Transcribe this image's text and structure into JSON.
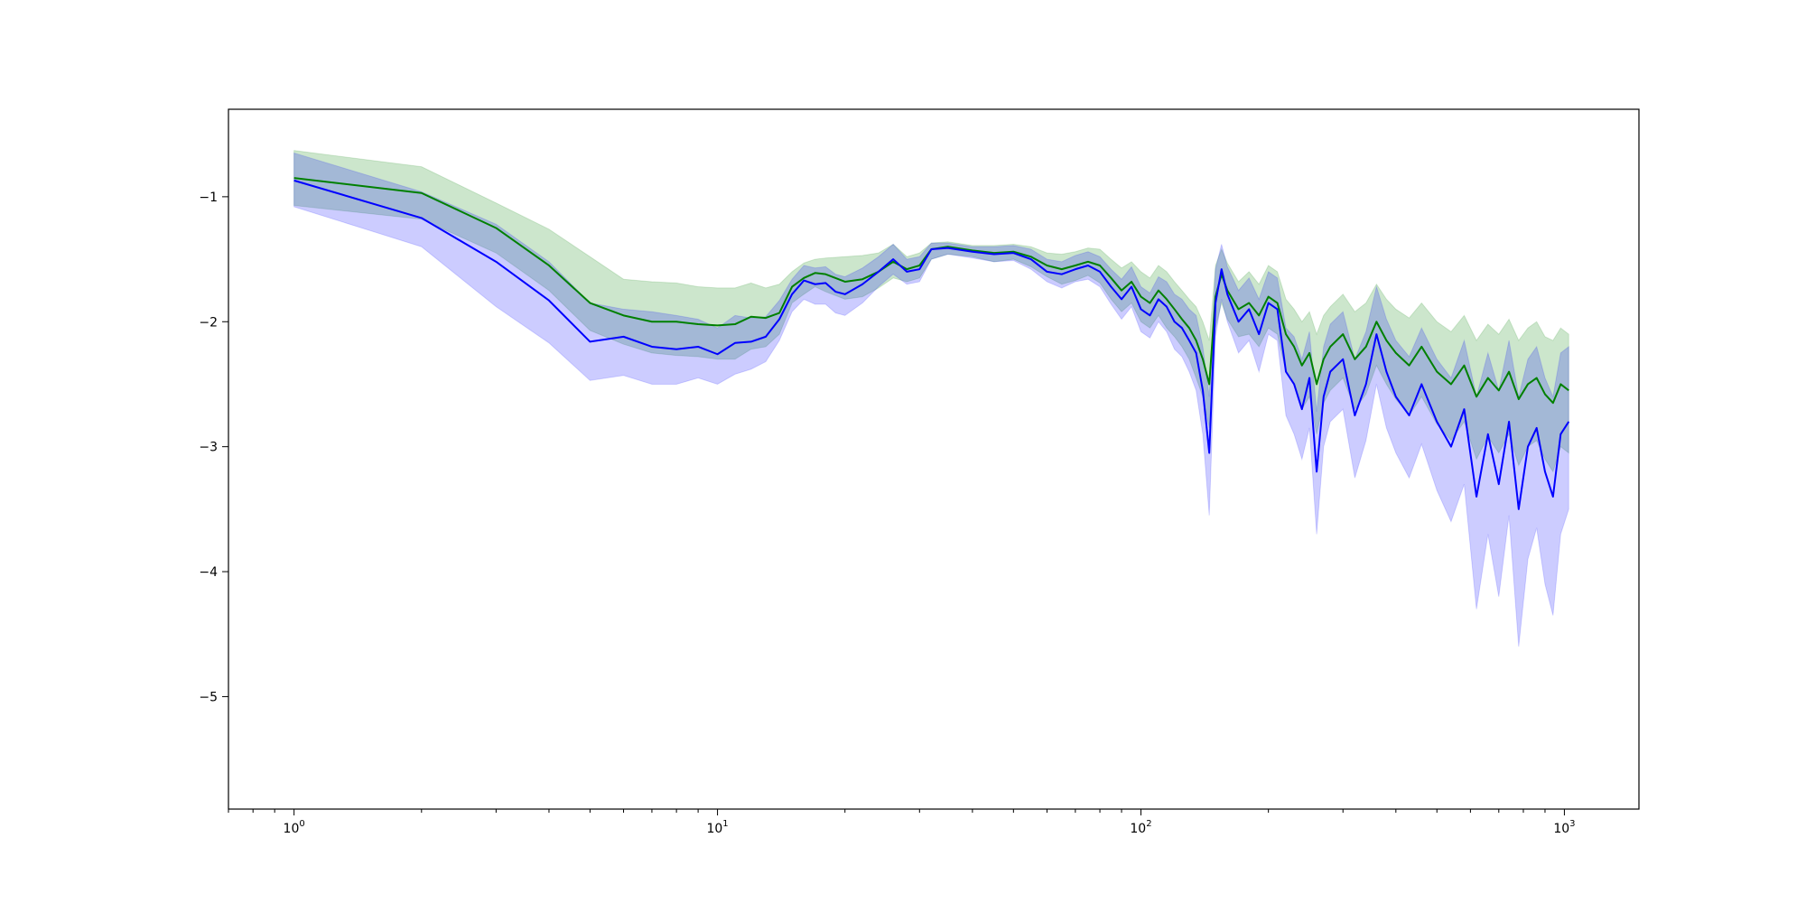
{
  "chart_data": {
    "type": "line",
    "title": "",
    "xlabel": "",
    "ylabel": "",
    "x_scale": "log",
    "xlim": [
      0.7,
      1500
    ],
    "ylim": [
      -5.9,
      -0.3
    ],
    "grid": false,
    "legend": "none",
    "x_ticks": [
      {
        "value": 1,
        "base": "10",
        "exp": "0"
      },
      {
        "value": 10,
        "base": "10",
        "exp": "1"
      },
      {
        "value": 100,
        "base": "10",
        "exp": "2"
      },
      {
        "value": 1000,
        "base": "10",
        "exp": "3"
      }
    ],
    "y_ticks": [
      {
        "value": -1,
        "label": "−1"
      },
      {
        "value": -2,
        "label": "−2"
      },
      {
        "value": -3,
        "label": "−3"
      },
      {
        "value": -4,
        "label": "−4"
      },
      {
        "value": -5,
        "label": "−5"
      }
    ],
    "series": [
      {
        "color": "#008000",
        "band_color": "#008000",
        "band_opacity": 0.2,
        "points": [
          [
            1,
            -0.85,
            -1.07,
            -0.63
          ],
          [
            2,
            -0.97,
            -1.18,
            -0.76
          ],
          [
            3,
            -1.25,
            -1.45,
            -1.05
          ],
          [
            4,
            -1.55,
            -1.75,
            -1.26
          ],
          [
            5,
            -1.85,
            -2.07,
            -1.48
          ],
          [
            6,
            -1.95,
            -2.18,
            -1.66
          ],
          [
            7,
            -2.0,
            -2.25,
            -1.68
          ],
          [
            8,
            -2.0,
            -2.27,
            -1.69
          ],
          [
            9,
            -2.02,
            -2.28,
            -1.72
          ],
          [
            10,
            -2.03,
            -2.3,
            -1.73
          ],
          [
            11,
            -2.02,
            -2.3,
            -1.73
          ],
          [
            12,
            -1.96,
            -2.22,
            -1.69
          ],
          [
            13,
            -1.97,
            -2.2,
            -1.73
          ],
          [
            14,
            -1.93,
            -2.1,
            -1.7
          ],
          [
            15,
            -1.72,
            -1.85,
            -1.6
          ],
          [
            16,
            -1.65,
            -1.78,
            -1.53
          ],
          [
            17,
            -1.61,
            -1.72,
            -1.5
          ],
          [
            18,
            -1.62,
            -1.76,
            -1.49
          ],
          [
            20,
            -1.68,
            -1.82,
            -1.48
          ],
          [
            22,
            -1.66,
            -1.8,
            -1.47
          ],
          [
            24,
            -1.6,
            -1.73,
            -1.45
          ],
          [
            26,
            -1.52,
            -1.65,
            -1.38
          ],
          [
            28,
            -1.58,
            -1.68,
            -1.48
          ],
          [
            30,
            -1.55,
            -1.65,
            -1.45
          ],
          [
            32,
            -1.42,
            -1.5,
            -1.37
          ],
          [
            35,
            -1.4,
            -1.46,
            -1.36
          ],
          [
            40,
            -1.43,
            -1.48,
            -1.39
          ],
          [
            45,
            -1.45,
            -1.52,
            -1.39
          ],
          [
            50,
            -1.44,
            -1.5,
            -1.38
          ],
          [
            55,
            -1.48,
            -1.56,
            -1.4
          ],
          [
            60,
            -1.55,
            -1.64,
            -1.45
          ],
          [
            65,
            -1.58,
            -1.7,
            -1.46
          ],
          [
            70,
            -1.55,
            -1.67,
            -1.44
          ],
          [
            75,
            -1.52,
            -1.63,
            -1.41
          ],
          [
            80,
            -1.55,
            -1.69,
            -1.42
          ],
          [
            85,
            -1.65,
            -1.82,
            -1.5
          ],
          [
            90,
            -1.75,
            -1.92,
            -1.57
          ],
          [
            95,
            -1.68,
            -1.85,
            -1.52
          ],
          [
            100,
            -1.8,
            -2.0,
            -1.6
          ],
          [
            105,
            -1.85,
            -2.05,
            -1.65
          ],
          [
            110,
            -1.75,
            -1.95,
            -1.55
          ],
          [
            115,
            -1.82,
            -2.05,
            -1.6
          ],
          [
            120,
            -1.9,
            -2.12,
            -1.68
          ],
          [
            125,
            -1.98,
            -2.2,
            -1.75
          ],
          [
            130,
            -2.05,
            -2.3,
            -1.82
          ],
          [
            135,
            -2.15,
            -2.45,
            -1.88
          ],
          [
            140,
            -2.3,
            -2.6,
            -2.0
          ],
          [
            145,
            -2.5,
            -2.85,
            -2.15
          ],
          [
            150,
            -1.8,
            -2.05,
            -1.55
          ],
          [
            155,
            -1.62,
            -1.85,
            -1.42
          ],
          [
            160,
            -1.75,
            -1.98,
            -1.53
          ],
          [
            170,
            -1.9,
            -2.12,
            -1.68
          ],
          [
            180,
            -1.85,
            -2.1,
            -1.6
          ],
          [
            190,
            -1.95,
            -2.2,
            -1.7
          ],
          [
            200,
            -1.8,
            -2.05,
            -1.55
          ],
          [
            210,
            -1.85,
            -2.1,
            -1.6
          ],
          [
            220,
            -2.1,
            -2.4,
            -1.82
          ],
          [
            230,
            -2.2,
            -2.5,
            -1.9
          ],
          [
            240,
            -2.35,
            -2.7,
            -2.0
          ],
          [
            250,
            -2.25,
            -2.6,
            -1.92
          ],
          [
            260,
            -2.5,
            -2.9,
            -2.1
          ],
          [
            270,
            -2.3,
            -2.65,
            -1.95
          ],
          [
            280,
            -2.2,
            -2.55,
            -1.88
          ],
          [
            300,
            -2.1,
            -2.45,
            -1.78
          ],
          [
            320,
            -2.3,
            -2.7,
            -1.92
          ],
          [
            340,
            -2.2,
            -2.58,
            -1.85
          ],
          [
            360,
            -2.0,
            -2.35,
            -1.7
          ],
          [
            380,
            -2.15,
            -2.5,
            -1.82
          ],
          [
            400,
            -2.25,
            -2.62,
            -1.9
          ],
          [
            430,
            -2.35,
            -2.75,
            -1.97
          ],
          [
            460,
            -2.2,
            -2.6,
            -1.85
          ],
          [
            500,
            -2.4,
            -2.82,
            -2.0
          ],
          [
            540,
            -2.5,
            -2.95,
            -2.08
          ],
          [
            580,
            -2.35,
            -2.8,
            -1.95
          ],
          [
            620,
            -2.6,
            -3.1,
            -2.15
          ],
          [
            660,
            -2.45,
            -2.92,
            -2.02
          ],
          [
            700,
            -2.55,
            -3.05,
            -2.1
          ],
          [
            740,
            -2.4,
            -2.9,
            -1.98
          ],
          [
            780,
            -2.62,
            -3.15,
            -2.15
          ],
          [
            820,
            -2.5,
            -3.0,
            -2.05
          ],
          [
            860,
            -2.45,
            -2.95,
            -2.0
          ],
          [
            900,
            -2.58,
            -3.1,
            -2.12
          ],
          [
            940,
            -2.65,
            -3.2,
            -2.15
          ],
          [
            980,
            -2.5,
            -3.0,
            -2.05
          ],
          [
            1024,
            -2.55,
            -3.05,
            -2.1
          ]
        ]
      },
      {
        "color": "#0000ff",
        "band_color": "#0000ff",
        "band_opacity": 0.2,
        "points": [
          [
            1,
            -0.87,
            -1.08,
            -0.65
          ],
          [
            2,
            -1.17,
            -1.4,
            -0.96
          ],
          [
            3,
            -1.52,
            -1.88,
            -1.22
          ],
          [
            4,
            -1.83,
            -2.17,
            -1.52
          ],
          [
            5,
            -2.16,
            -2.47,
            -1.85
          ],
          [
            6,
            -2.12,
            -2.43,
            -1.9
          ],
          [
            7,
            -2.2,
            -2.5,
            -1.92
          ],
          [
            8,
            -2.22,
            -2.5,
            -1.95
          ],
          [
            9,
            -2.2,
            -2.45,
            -1.98
          ],
          [
            10,
            -2.26,
            -2.5,
            -2.05
          ],
          [
            11,
            -2.17,
            -2.42,
            -1.95
          ],
          [
            12,
            -2.16,
            -2.38,
            -1.97
          ],
          [
            13,
            -2.12,
            -2.32,
            -1.96
          ],
          [
            14,
            -1.98,
            -2.15,
            -1.83
          ],
          [
            15,
            -1.78,
            -1.92,
            -1.66
          ],
          [
            16,
            -1.67,
            -1.82,
            -1.55
          ],
          [
            17,
            -1.7,
            -1.86,
            -1.57
          ],
          [
            18,
            -1.69,
            -1.86,
            -1.56
          ],
          [
            19,
            -1.76,
            -1.93,
            -1.62
          ],
          [
            20,
            -1.78,
            -1.95,
            -1.64
          ],
          [
            22,
            -1.7,
            -1.85,
            -1.57
          ],
          [
            24,
            -1.6,
            -1.72,
            -1.48
          ],
          [
            26,
            -1.5,
            -1.62,
            -1.38
          ],
          [
            28,
            -1.6,
            -1.7,
            -1.5
          ],
          [
            30,
            -1.58,
            -1.68,
            -1.48
          ],
          [
            32,
            -1.42,
            -1.5,
            -1.37
          ],
          [
            35,
            -1.41,
            -1.46,
            -1.37
          ],
          [
            40,
            -1.44,
            -1.49,
            -1.4
          ],
          [
            45,
            -1.46,
            -1.52,
            -1.4
          ],
          [
            50,
            -1.45,
            -1.51,
            -1.39
          ],
          [
            55,
            -1.5,
            -1.58,
            -1.42
          ],
          [
            60,
            -1.6,
            -1.68,
            -1.5
          ],
          [
            65,
            -1.62,
            -1.73,
            -1.52
          ],
          [
            70,
            -1.58,
            -1.68,
            -1.47
          ],
          [
            75,
            -1.55,
            -1.66,
            -1.44
          ],
          [
            80,
            -1.6,
            -1.72,
            -1.48
          ],
          [
            85,
            -1.72,
            -1.86,
            -1.58
          ],
          [
            90,
            -1.82,
            -1.98,
            -1.66
          ],
          [
            95,
            -1.72,
            -1.88,
            -1.56
          ],
          [
            100,
            -1.9,
            -2.08,
            -1.72
          ],
          [
            105,
            -1.95,
            -2.13,
            -1.77
          ],
          [
            110,
            -1.82,
            -2.0,
            -1.64
          ],
          [
            115,
            -1.88,
            -2.08,
            -1.68
          ],
          [
            120,
            -2.0,
            -2.22,
            -1.78
          ],
          [
            125,
            -2.05,
            -2.28,
            -1.82
          ],
          [
            130,
            -2.15,
            -2.4,
            -1.9
          ],
          [
            135,
            -2.25,
            -2.55,
            -1.95
          ],
          [
            140,
            -2.55,
            -2.9,
            -2.2
          ],
          [
            145,
            -3.05,
            -3.55,
            -2.6
          ],
          [
            150,
            -1.85,
            -2.12,
            -1.58
          ],
          [
            155,
            -1.58,
            -1.82,
            -1.38
          ],
          [
            160,
            -1.78,
            -2.0,
            -1.56
          ],
          [
            170,
            -2.0,
            -2.25,
            -1.75
          ],
          [
            180,
            -1.9,
            -2.15,
            -1.65
          ],
          [
            190,
            -2.1,
            -2.4,
            -1.82
          ],
          [
            200,
            -1.85,
            -2.1,
            -1.6
          ],
          [
            210,
            -1.9,
            -2.15,
            -1.65
          ],
          [
            220,
            -2.4,
            -2.75,
            -2.05
          ],
          [
            230,
            -2.5,
            -2.9,
            -2.12
          ],
          [
            240,
            -2.7,
            -3.1,
            -2.3
          ],
          [
            250,
            -2.45,
            -2.85,
            -2.08
          ],
          [
            260,
            -3.2,
            -3.7,
            -2.72
          ],
          [
            270,
            -2.6,
            -3.0,
            -2.2
          ],
          [
            280,
            -2.4,
            -2.8,
            -2.02
          ],
          [
            300,
            -2.3,
            -2.7,
            -1.92
          ],
          [
            320,
            -2.75,
            -3.25,
            -2.3
          ],
          [
            340,
            -2.5,
            -2.95,
            -2.08
          ],
          [
            360,
            -2.1,
            -2.5,
            -1.72
          ],
          [
            380,
            -2.4,
            -2.85,
            -1.98
          ],
          [
            400,
            -2.6,
            -3.05,
            -2.15
          ],
          [
            430,
            -2.75,
            -3.25,
            -2.28
          ],
          [
            460,
            -2.5,
            -2.98,
            -2.05
          ],
          [
            500,
            -2.8,
            -3.35,
            -2.3
          ],
          [
            540,
            -3.0,
            -3.6,
            -2.45
          ],
          [
            580,
            -2.7,
            -3.3,
            -2.15
          ],
          [
            620,
            -3.4,
            -4.3,
            -2.6
          ],
          [
            660,
            -2.9,
            -3.7,
            -2.25
          ],
          [
            700,
            -3.3,
            -4.2,
            -2.55
          ],
          [
            740,
            -2.8,
            -3.55,
            -2.15
          ],
          [
            780,
            -3.5,
            -4.6,
            -2.6
          ],
          [
            820,
            -3.0,
            -3.9,
            -2.3
          ],
          [
            860,
            -2.85,
            -3.65,
            -2.2
          ],
          [
            900,
            -3.2,
            -4.1,
            -2.45
          ],
          [
            940,
            -3.4,
            -4.35,
            -2.6
          ],
          [
            980,
            -2.9,
            -3.7,
            -2.25
          ],
          [
            1024,
            -2.8,
            -3.5,
            -2.2
          ]
        ]
      }
    ]
  }
}
